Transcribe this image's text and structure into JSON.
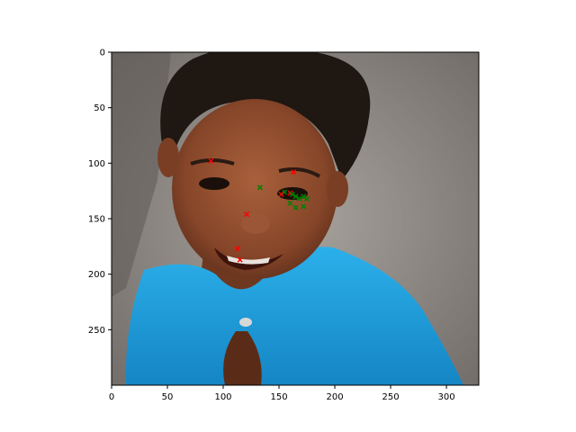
{
  "chart_data": {
    "type": "scatter",
    "title": "",
    "xlabel": "",
    "ylabel": "",
    "background_image": "photo of a smiling child in a blue top against a gray wall",
    "xlim": [
      0,
      329
    ],
    "ylim": [
      300,
      0
    ],
    "y_axis_inverted": true,
    "grid": false,
    "legend": "none",
    "x_ticks": [
      0,
      50,
      100,
      150,
      200,
      250,
      300
    ],
    "y_ticks": [
      0,
      50,
      100,
      150,
      200,
      250
    ],
    "series": [
      {
        "color": "#ff0000",
        "marker": "x",
        "points": [
          {
            "x": 89,
            "y": 98
          },
          {
            "x": 163,
            "y": 108
          },
          {
            "x": 160,
            "y": 127
          },
          {
            "x": 152,
            "y": 128
          },
          {
            "x": 121,
            "y": 146
          },
          {
            "x": 113,
            "y": 177
          },
          {
            "x": 115,
            "y": 187
          }
        ]
      },
      {
        "color": "#008000",
        "marker": "x",
        "points": [
          {
            "x": 133,
            "y": 122
          },
          {
            "x": 155,
            "y": 126
          },
          {
            "x": 162,
            "y": 128
          },
          {
            "x": 165,
            "y": 130
          },
          {
            "x": 168,
            "y": 132
          },
          {
            "x": 172,
            "y": 130
          },
          {
            "x": 175,
            "y": 132
          },
          {
            "x": 160,
            "y": 136
          },
          {
            "x": 165,
            "y": 140
          },
          {
            "x": 172,
            "y": 139
          }
        ]
      }
    ]
  },
  "colors": {
    "wall": "#9a9590",
    "shirt": "#1e9fd8",
    "skin": "#8a4a2e",
    "hair": "#1e1712"
  }
}
